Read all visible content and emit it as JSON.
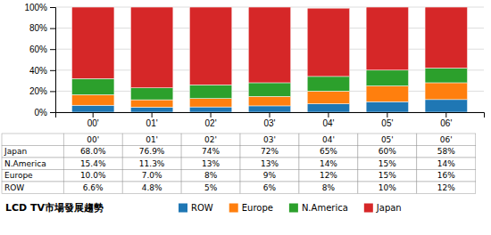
{
  "chart_data": {
    "type": "bar",
    "stacked": true,
    "title": "LCD TV市場發展趨勢",
    "categories": [
      "00'",
      "01'",
      "02'",
      "03'",
      "04'",
      "05'",
      "06'"
    ],
    "series": [
      {
        "name": "ROW",
        "values": [
          6.6,
          4.8,
          5.0,
          6.0,
          8.0,
          10.0,
          12.0
        ],
        "value_labels": [
          "6.6%",
          "4.8%",
          "5%",
          "6%",
          "8%",
          "10%",
          "12%"
        ]
      },
      {
        "name": "Europe",
        "values": [
          10.0,
          7.0,
          8.0,
          9.0,
          12.0,
          15.0,
          16.0
        ],
        "value_labels": [
          "10.0%",
          "7.0%",
          "8%",
          "9%",
          "12%",
          "15%",
          "16%"
        ]
      },
      {
        "name": "N.America",
        "values": [
          15.4,
          11.3,
          13.0,
          13.0,
          14.0,
          15.0,
          14.0
        ],
        "value_labels": [
          "15.4%",
          "11.3%",
          "13%",
          "13%",
          "14%",
          "15%",
          "14%"
        ]
      },
      {
        "name": "Japan",
        "values": [
          68.0,
          76.9,
          74.0,
          72.0,
          65.0,
          60.0,
          58.0
        ],
        "value_labels": [
          "68.0%",
          "76.9%",
          "74%",
          "72%",
          "65%",
          "60%",
          "58%"
        ]
      }
    ],
    "ylim": [
      0,
      100
    ],
    "yticks": [
      {
        "value": 0,
        "label": "0%"
      },
      {
        "value": 20,
        "label": "20%"
      },
      {
        "value": 40,
        "label": "40%"
      },
      {
        "value": 60,
        "label": "60%"
      },
      {
        "value": 80,
        "label": "80%"
      },
      {
        "value": 100,
        "label": "100%"
      }
    ],
    "grid": true
  }
}
